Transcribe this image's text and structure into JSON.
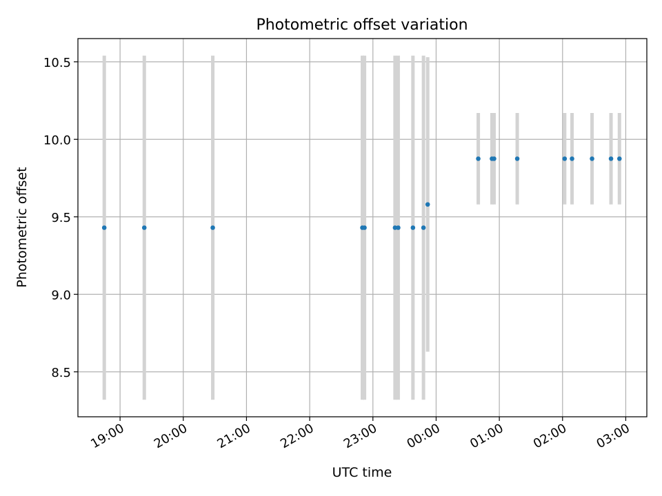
{
  "chart_data": {
    "type": "scatter",
    "title": "Photometric offset variation",
    "xlabel": "UTC time",
    "ylabel": "Photometric offset",
    "x_axis": "time",
    "xlim": [
      "2000-01-01 18:20",
      "2000-01-02 03:20"
    ],
    "ylim": [
      8.21,
      10.65
    ],
    "yticks": [
      8.5,
      9.0,
      9.5,
      10.0,
      10.5
    ],
    "ytick_labels": [
      "8.5",
      "9.0",
      "9.5",
      "10.0",
      "10.5"
    ],
    "xticks": [
      "2000-01-01 19:00",
      "2000-01-01 20:00",
      "2000-01-01 21:00",
      "2000-01-01 22:00",
      "2000-01-01 23:00",
      "2000-01-02 00:00",
      "2000-01-02 01:00",
      "2000-01-02 02:00",
      "2000-01-02 03:00"
    ],
    "xtick_labels": [
      "19:00",
      "20:00",
      "21:00",
      "22:00",
      "23:00",
      "00:00",
      "01:00",
      "02:00",
      "03:00"
    ],
    "grid": true,
    "colors": {
      "points": "#1f77b4",
      "error_bars": "#d3d3d3",
      "grid": "#b0b0b0"
    },
    "series": [
      {
        "points": [
          {
            "x": "2000-01-01 18:45",
            "y": 9.43,
            "y_low": 8.32,
            "y_high": 10.54
          },
          {
            "x": "2000-01-01 19:23",
            "y": 9.43,
            "y_low": 8.32,
            "y_high": 10.54
          },
          {
            "x": "2000-01-01 20:28",
            "y": 9.43,
            "y_low": 8.32,
            "y_high": 10.54
          },
          {
            "x": "2000-01-01 22:50",
            "y": 9.43,
            "y_low": 8.32,
            "y_high": 10.54
          },
          {
            "x": "2000-01-01 22:52",
            "y": 9.43,
            "y_low": 8.32,
            "y_high": 10.54
          },
          {
            "x": "2000-01-01 23:21",
            "y": 9.43,
            "y_low": 8.32,
            "y_high": 10.54
          },
          {
            "x": "2000-01-01 23:24",
            "y": 9.43,
            "y_low": 8.32,
            "y_high": 10.54
          },
          {
            "x": "2000-01-01 23:38",
            "y": 9.43,
            "y_low": 8.32,
            "y_high": 10.54
          },
          {
            "x": "2000-01-01 23:48",
            "y": 9.43,
            "y_low": 8.32,
            "y_high": 10.54
          },
          {
            "x": "2000-01-01 23:52",
            "y": 9.58,
            "y_low": 8.63,
            "y_high": 10.53
          },
          {
            "x": "2000-01-02 00:40",
            "y": 9.875,
            "y_low": 9.58,
            "y_high": 10.17
          },
          {
            "x": "2000-01-02 00:53",
            "y": 9.875,
            "y_low": 9.58,
            "y_high": 10.17
          },
          {
            "x": "2000-01-02 00:55",
            "y": 9.875,
            "y_low": 9.58,
            "y_high": 10.17
          },
          {
            "x": "2000-01-02 01:17",
            "y": 9.875,
            "y_low": 9.58,
            "y_high": 10.17
          },
          {
            "x": "2000-01-02 02:02",
            "y": 9.875,
            "y_low": 9.58,
            "y_high": 10.17
          },
          {
            "x": "2000-01-02 02:09",
            "y": 9.875,
            "y_low": 9.58,
            "y_high": 10.17
          },
          {
            "x": "2000-01-02 02:28",
            "y": 9.875,
            "y_low": 9.58,
            "y_high": 10.17
          },
          {
            "x": "2000-01-02 02:46",
            "y": 9.875,
            "y_low": 9.58,
            "y_high": 10.17
          },
          {
            "x": "2000-01-02 02:54",
            "y": 9.875,
            "y_low": 9.58,
            "y_high": 10.17
          }
        ]
      }
    ]
  }
}
